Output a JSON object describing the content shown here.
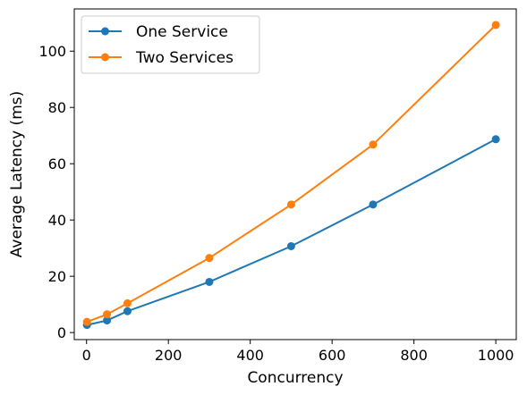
{
  "chart_data": {
    "type": "line",
    "xlabel": "Concurrency",
    "ylabel": "Average Latency (ms)",
    "x": [
      1,
      50,
      100,
      300,
      500,
      700,
      1000
    ],
    "xlim": [
      -30,
      1050
    ],
    "ylim": [
      -2.5,
      115
    ],
    "xticks": [
      0,
      200,
      400,
      600,
      800,
      1000
    ],
    "yticks": [
      0,
      20,
      40,
      60,
      80,
      100
    ],
    "grid": false,
    "legend_position": "top-left",
    "series": [
      {
        "name": "One Service",
        "color": "#1f77b4",
        "marker": "circle",
        "values": [
          2.7,
          4.3,
          7.6,
          18.0,
          30.7,
          45.5,
          68.7
        ]
      },
      {
        "name": "Two Services",
        "color": "#ff7f0e",
        "marker": "circle",
        "values": [
          3.8,
          6.5,
          10.4,
          26.5,
          45.5,
          66.8,
          109.3
        ]
      }
    ]
  }
}
